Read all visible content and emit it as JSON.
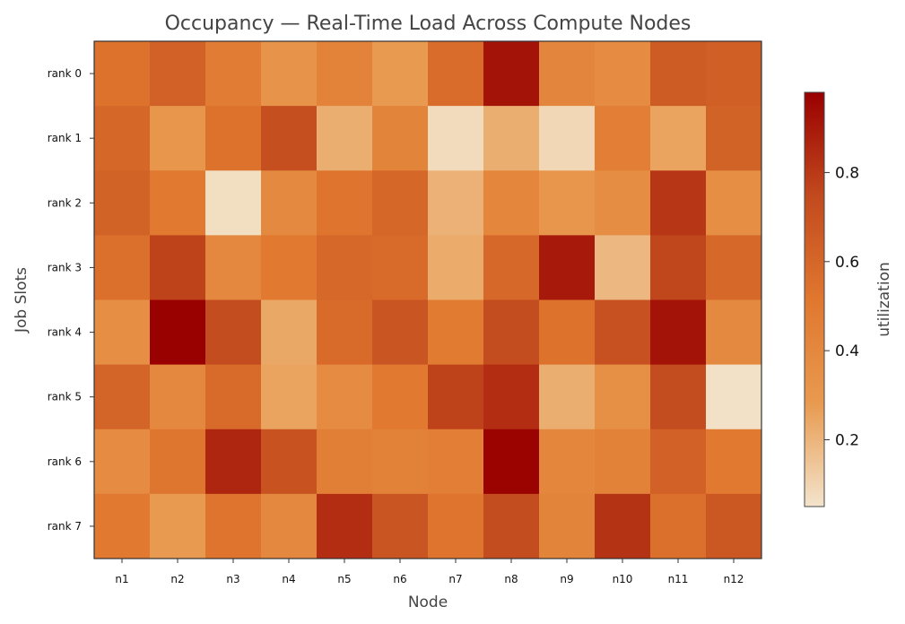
{
  "chart_data": {
    "type": "heatmap",
    "title": "Occupancy — Real-Time Load Across Compute Nodes",
    "xlabel": "Node",
    "ylabel": "Job Slots",
    "x_categories": [
      "n1",
      "n2",
      "n3",
      "n4",
      "n5",
      "n6",
      "n7",
      "n8",
      "n9",
      "n10",
      "n11",
      "n12"
    ],
    "y_categories": [
      "rank 0",
      "rank 1",
      "rank 2",
      "rank 3",
      "rank 4",
      "rank 5",
      "rank 6",
      "rank 7"
    ],
    "values": [
      [
        0.54,
        0.63,
        0.48,
        0.32,
        0.44,
        0.28,
        0.57,
        0.92,
        0.42,
        0.38,
        0.66,
        0.64
      ],
      [
        0.6,
        0.31,
        0.54,
        0.72,
        0.22,
        0.43,
        0.08,
        0.22,
        0.09,
        0.47,
        0.25,
        0.62
      ],
      [
        0.62,
        0.5,
        0.07,
        0.39,
        0.53,
        0.6,
        0.21,
        0.41,
        0.31,
        0.37,
        0.81,
        0.36
      ],
      [
        0.55,
        0.77,
        0.4,
        0.5,
        0.59,
        0.58,
        0.23,
        0.59,
        0.9,
        0.19,
        0.76,
        0.59
      ],
      [
        0.36,
        0.98,
        0.73,
        0.24,
        0.58,
        0.69,
        0.49,
        0.73,
        0.54,
        0.71,
        0.92,
        0.39
      ],
      [
        0.61,
        0.4,
        0.58,
        0.25,
        0.38,
        0.5,
        0.77,
        0.84,
        0.22,
        0.35,
        0.73,
        0.06
      ],
      [
        0.38,
        0.52,
        0.86,
        0.7,
        0.46,
        0.45,
        0.47,
        0.97,
        0.41,
        0.45,
        0.63,
        0.5
      ],
      [
        0.5,
        0.28,
        0.53,
        0.4,
        0.84,
        0.69,
        0.53,
        0.73,
        0.43,
        0.82,
        0.55,
        0.68
      ]
    ],
    "colorbar": {
      "label": "utilization",
      "ticks": [
        0.2,
        0.4,
        0.6,
        0.8
      ],
      "tick_labels": [
        "0.2",
        "0.4",
        "0.6",
        "0.8"
      ],
      "range": [
        0.05,
        0.98
      ],
      "colormap": [
        "#f3e4cc",
        "#e89a4f",
        "#e0772f",
        "#c24a1e",
        "#990000"
      ]
    },
    "grid": false,
    "legend": "right colorbar"
  }
}
